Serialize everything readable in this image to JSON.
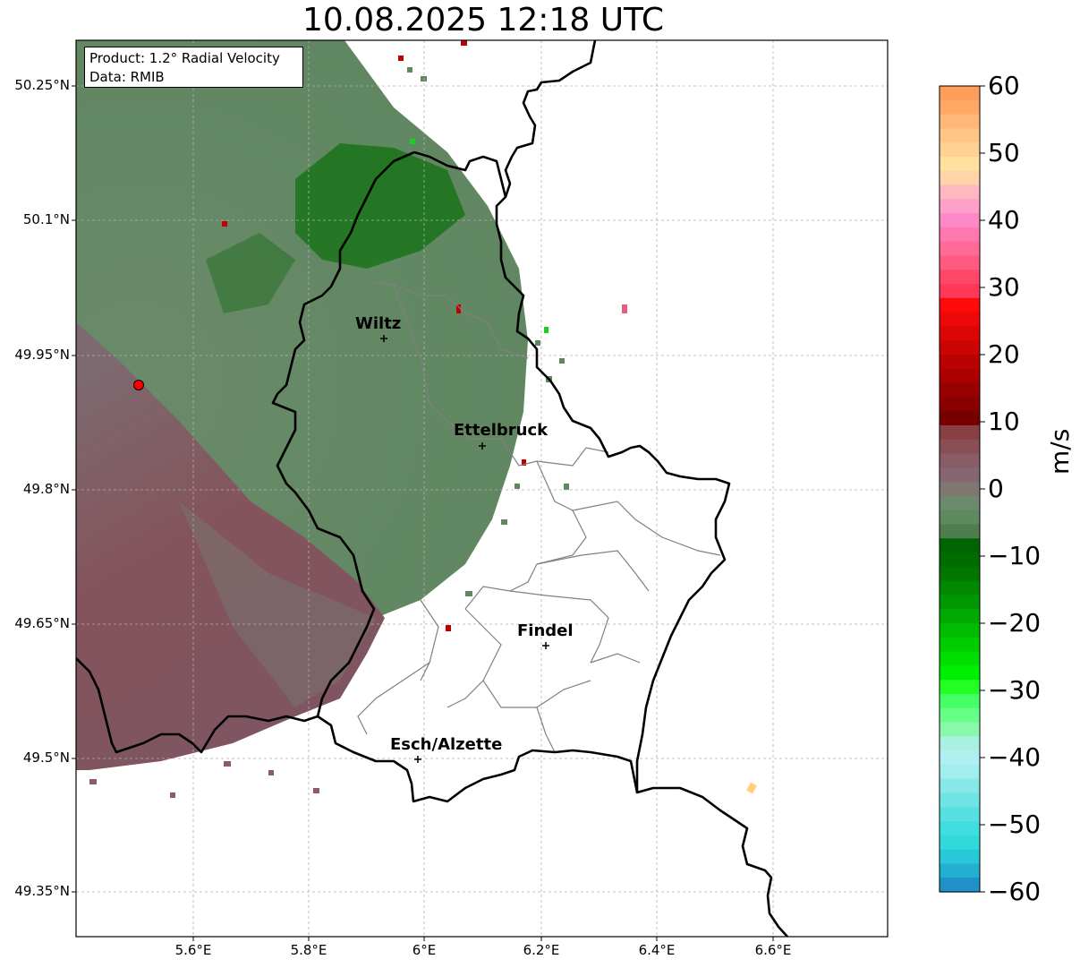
{
  "title": "10.08.2025 12:18 UTC",
  "info_box": {
    "product": "Product: 1.2° Radial Velocity",
    "data": "Data: RMIB"
  },
  "axes": {
    "lat_ticks": [
      "50.25°N",
      "50.1°N",
      "49.95°N",
      "49.8°N",
      "49.65°N",
      "49.5°N",
      "49.35°N"
    ],
    "lon_ticks": [
      "5.6°E",
      "5.8°E",
      "6°E",
      "6.2°E",
      "6.4°E",
      "6.6°E"
    ],
    "lat_range": [
      49.3,
      50.3
    ],
    "lon_range": [
      5.4,
      6.78
    ]
  },
  "cities": [
    {
      "name": "Wiltz",
      "lon": 5.93,
      "lat": 49.97
    },
    {
      "name": "Ettelbruck",
      "lon": 6.1,
      "lat": 49.85
    },
    {
      "name": "Findel",
      "lon": 6.21,
      "lat": 49.63
    },
    {
      "name": "Esch/Alzette",
      "lon": 5.99,
      "lat": 49.5
    }
  ],
  "radar_site": {
    "lon": 5.51,
    "lat": 49.92
  },
  "colorbar": {
    "label": "m/s",
    "ticks": [
      "60",
      "50",
      "40",
      "30",
      "20",
      "10",
      "0",
      "−10",
      "−20",
      "−30",
      "−40",
      "−50",
      "−60"
    ],
    "range": [
      -60,
      60
    ],
    "colors": [
      "#ff9e5a",
      "#ffa866",
      "#ffb877",
      "#ffc584",
      "#ffd193",
      "#ffe09d",
      "#ffd5a8",
      "#ffb8c0",
      "#ffa0c8",
      "#ff88c8",
      "#ff78b0",
      "#ff6a98",
      "#ff5a80",
      "#ff4868",
      "#ff3858",
      "#ff0a0a",
      "#ee0808",
      "#dd0606",
      "#cc0404",
      "#bb0202",
      "#aa0000",
      "#990000",
      "#880000",
      "#770000",
      "#884044",
      "#8a4f55",
      "#8a5c66",
      "#866670",
      "#807870",
      "#6e8a6e",
      "#5f8a5f",
      "#4e7e4e",
      "#006400",
      "#006c00",
      "#007800",
      "#008800",
      "#009800",
      "#00aa00",
      "#00bb00",
      "#00cc00",
      "#00dd00",
      "#00ee00",
      "#22ff22",
      "#44ff66",
      "#66ff88",
      "#88f8aa",
      "#aaf0e0",
      "#b0f0f0",
      "#a0eeee",
      "#88e8e8",
      "#70e4e4",
      "#58e0e0",
      "#40dede",
      "#30dada",
      "#28c8d8",
      "#22b0d0",
      "#2290c8"
    ]
  }
}
